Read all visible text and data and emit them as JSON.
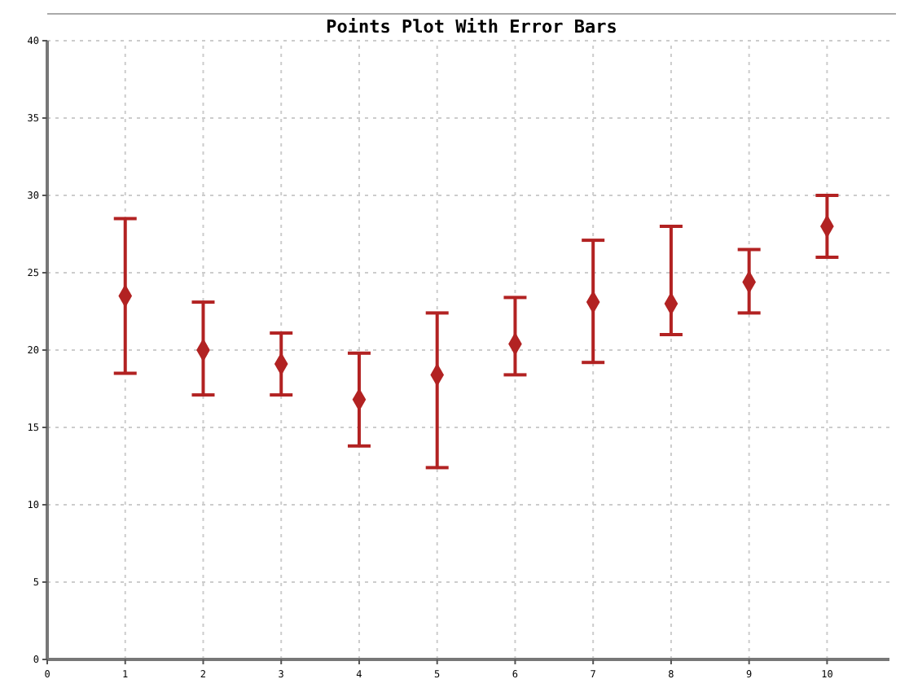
{
  "chart_data": {
    "type": "scatter",
    "title": "Points Plot With Error Bars",
    "x": [
      1,
      2,
      3,
      4,
      5,
      6,
      7,
      8,
      9,
      10
    ],
    "series": [
      {
        "color": "#b22222",
        "values": [
          23.5,
          20.0,
          19.1,
          16.8,
          18.4,
          20.4,
          23.1,
          23.0,
          24.4,
          28.0
        ],
        "errors": [
          [
            18.5,
            28.5
          ],
          [
            17.1,
            23.1
          ],
          [
            17.1,
            21.1
          ],
          [
            13.8,
            19.8
          ],
          [
            12.4,
            22.4
          ],
          [
            18.4,
            23.4
          ],
          [
            19.2,
            27.1
          ],
          [
            21.0,
            28.0
          ],
          [
            22.4,
            26.5
          ],
          [
            26.0,
            30.0
          ]
        ]
      }
    ],
    "marker": "diamond",
    "xlim": [
      0,
      10.8
    ],
    "xticks": [
      0,
      1,
      2,
      3,
      4,
      5,
      6,
      7,
      8,
      9,
      10
    ],
    "ylim": [
      0,
      40
    ],
    "yticks": [
      0,
      5,
      10,
      15,
      20,
      25,
      30,
      35,
      40
    ],
    "grid": true
  }
}
